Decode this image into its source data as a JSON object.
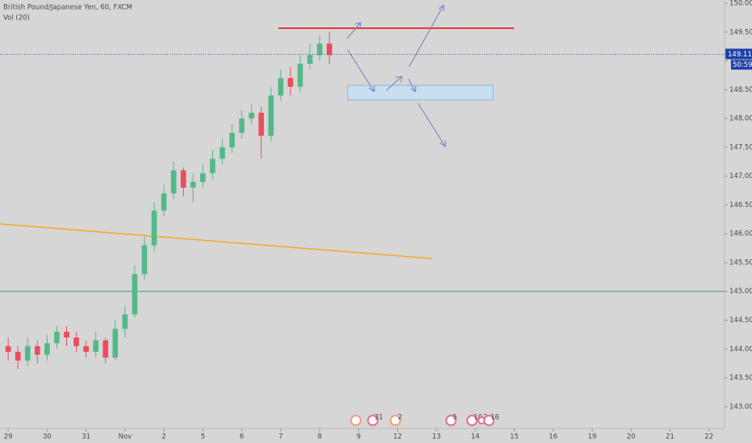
{
  "chart_data": {
    "type": "candlestick",
    "title": "British Pound/Japanese Yen, 60, FXCM",
    "subtitle": "Vol (20)",
    "x": [
      0,
      0.25,
      0.5,
      0.75,
      1,
      1.25,
      1.5,
      1.75,
      2,
      2.25,
      2.5,
      2.75,
      3,
      3.25,
      3.5,
      3.75,
      4,
      4.25,
      4.5,
      4.75,
      5,
      5.25,
      5.5,
      5.75,
      6,
      6.25,
      6.5,
      6.75,
      7,
      7.25,
      7.5,
      7.75,
      8,
      8.25
    ],
    "open": [
      144.05,
      143.95,
      143.8,
      144.05,
      143.9,
      144.1,
      144.3,
      144.2,
      144.05,
      143.95,
      144.15,
      143.85,
      144.35,
      144.6,
      145.3,
      145.8,
      146.4,
      146.7,
      147.1,
      146.8,
      146.9,
      147.05,
      147.3,
      147.5,
      147.75,
      148.0,
      148.1,
      147.7,
      148.4,
      148.7,
      148.55,
      148.95,
      149.1,
      149.3
    ],
    "high": [
      144.2,
      144.05,
      144.2,
      144.15,
      144.25,
      144.4,
      144.4,
      144.3,
      144.15,
      144.3,
      144.2,
      144.5,
      144.75,
      145.45,
      145.95,
      146.55,
      146.85,
      147.25,
      147.15,
      147.05,
      147.2,
      147.45,
      147.65,
      147.9,
      148.15,
      148.25,
      148.2,
      148.55,
      148.85,
      148.9,
      149.1,
      149.3,
      149.45,
      149.5
    ],
    "low": [
      143.8,
      143.65,
      143.7,
      143.75,
      143.8,
      144.0,
      144.05,
      143.95,
      143.85,
      143.85,
      143.75,
      143.8,
      144.2,
      144.55,
      145.2,
      145.7,
      146.3,
      146.6,
      146.65,
      146.55,
      146.8,
      146.95,
      147.2,
      147.4,
      147.65,
      147.9,
      147.3,
      147.6,
      148.3,
      148.4,
      148.45,
      148.85,
      149.0,
      148.95
    ],
    "close": [
      143.95,
      143.8,
      144.05,
      143.9,
      144.1,
      144.3,
      144.2,
      144.05,
      143.95,
      144.15,
      143.85,
      144.35,
      144.6,
      145.3,
      145.8,
      146.4,
      146.7,
      147.1,
      146.8,
      146.9,
      147.05,
      147.3,
      147.5,
      147.75,
      148.0,
      148.1,
      147.7,
      148.4,
      148.7,
      148.55,
      148.95,
      149.1,
      149.3,
      149.1
    ],
    "up_color": "#53b987",
    "down_color": "#eb4d5c",
    "xlim": [
      -0.21,
      18.4
    ],
    "xticks": [
      {
        "value": 0,
        "label": "29"
      },
      {
        "value": 1,
        "label": "30"
      },
      {
        "value": 2,
        "label": "31"
      },
      {
        "value": 3,
        "label": "Nov"
      },
      {
        "value": 4,
        "label": "2"
      },
      {
        "value": 5,
        "label": "5"
      },
      {
        "value": 6,
        "label": "6"
      },
      {
        "value": 7,
        "label": "7"
      },
      {
        "value": 8,
        "label": "8"
      },
      {
        "value": 9,
        "label": "9"
      },
      {
        "value": 10,
        "label": "12"
      },
      {
        "value": 11,
        "label": "13"
      },
      {
        "value": 12,
        "label": "14"
      },
      {
        "value": 13,
        "label": "15"
      },
      {
        "value": 14,
        "label": "16"
      },
      {
        "value": 15,
        "label": "19"
      },
      {
        "value": 16,
        "label": "20"
      },
      {
        "value": 17,
        "label": "21"
      },
      {
        "value": 18,
        "label": "22"
      }
    ],
    "ylim": [
      142.9,
      150.056
    ],
    "yticks": [
      {
        "value": 143,
        "label": "143.000"
      },
      {
        "value": 143.5,
        "label": "143.500"
      },
      {
        "value": 144,
        "label": "144.000"
      },
      {
        "value": 144.5,
        "label": "144.500"
      },
      {
        "value": 145,
        "label": "145.000"
      },
      {
        "value": 145.5,
        "label": "145.500"
      },
      {
        "value": 146,
        "label": "146.000"
      },
      {
        "value": 146.5,
        "label": "146.500"
      },
      {
        "value": 147,
        "label": "147.000"
      },
      {
        "value": 147.5,
        "label": "147.500"
      },
      {
        "value": 148,
        "label": "148.000"
      },
      {
        "value": 148.5,
        "label": "148.500"
      },
      {
        "value": 149,
        "label": "149.000"
      },
      {
        "value": 149.5,
        "label": "149.500"
      },
      {
        "value": 150,
        "label": "150.000"
      }
    ],
    "last_price": 149.113,
    "countdown": "50:59",
    "support_level": 145,
    "events": [
      "31",
      "2",
      "5",
      "10",
      "2",
      "16"
    ]
  }
}
